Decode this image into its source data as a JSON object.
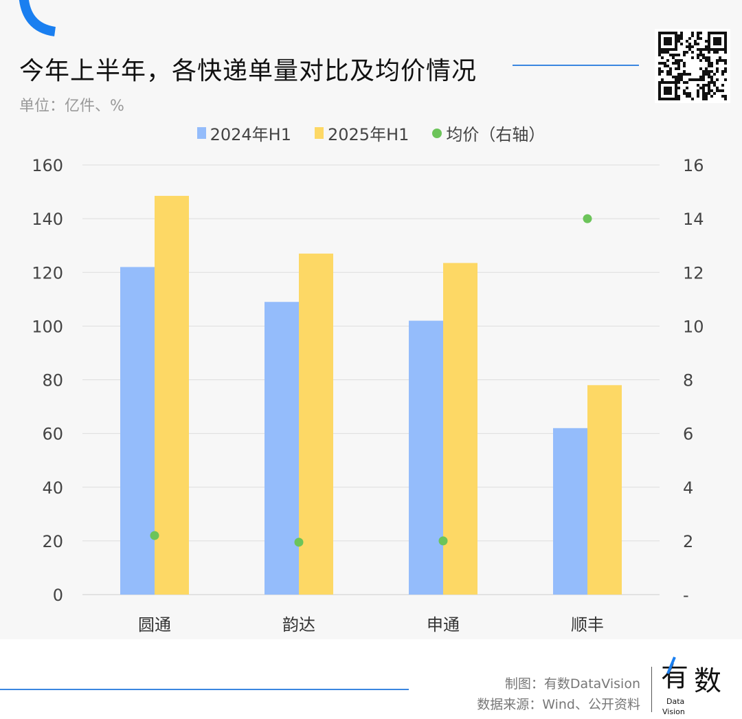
{
  "header": {
    "title": "今年上半年，各快递单量对比及均价情况",
    "unit": "单位：亿件、%"
  },
  "colors": {
    "accent": "#3a86e0",
    "series2024": "#94bcfb",
    "series2025": "#fdd865",
    "price": "#6cc45a"
  },
  "chart_data": {
    "type": "bar",
    "categories": [
      "圆通",
      "韵达",
      "申通",
      "顺丰"
    ],
    "series": [
      {
        "name": "2024年H1",
        "axis": "left",
        "values": [
          122,
          109,
          102,
          62
        ]
      },
      {
        "name": "2025年H1",
        "axis": "left",
        "values": [
          148.5,
          127,
          123.5,
          78
        ]
      },
      {
        "name": "均价（右轴）",
        "axis": "right",
        "type": "scatter",
        "values": [
          2.2,
          1.95,
          2.0,
          14.0
        ]
      }
    ],
    "ylim": [
      0,
      160
    ],
    "y2lim": [
      0,
      16
    ],
    "left_ticks": [
      "0",
      "20",
      "40",
      "60",
      "80",
      "100",
      "120",
      "140",
      "160"
    ],
    "right_ticks": [
      "-",
      "2",
      "4",
      "6",
      "8",
      "10",
      "12",
      "14",
      "16"
    ],
    "grid": true,
    "legend": "top"
  },
  "footer": {
    "credit": "制图：有数DataVision",
    "source": "数据来源：Wind、公开资料",
    "logo_text": "有数",
    "logo_sub": "Data Vision"
  }
}
